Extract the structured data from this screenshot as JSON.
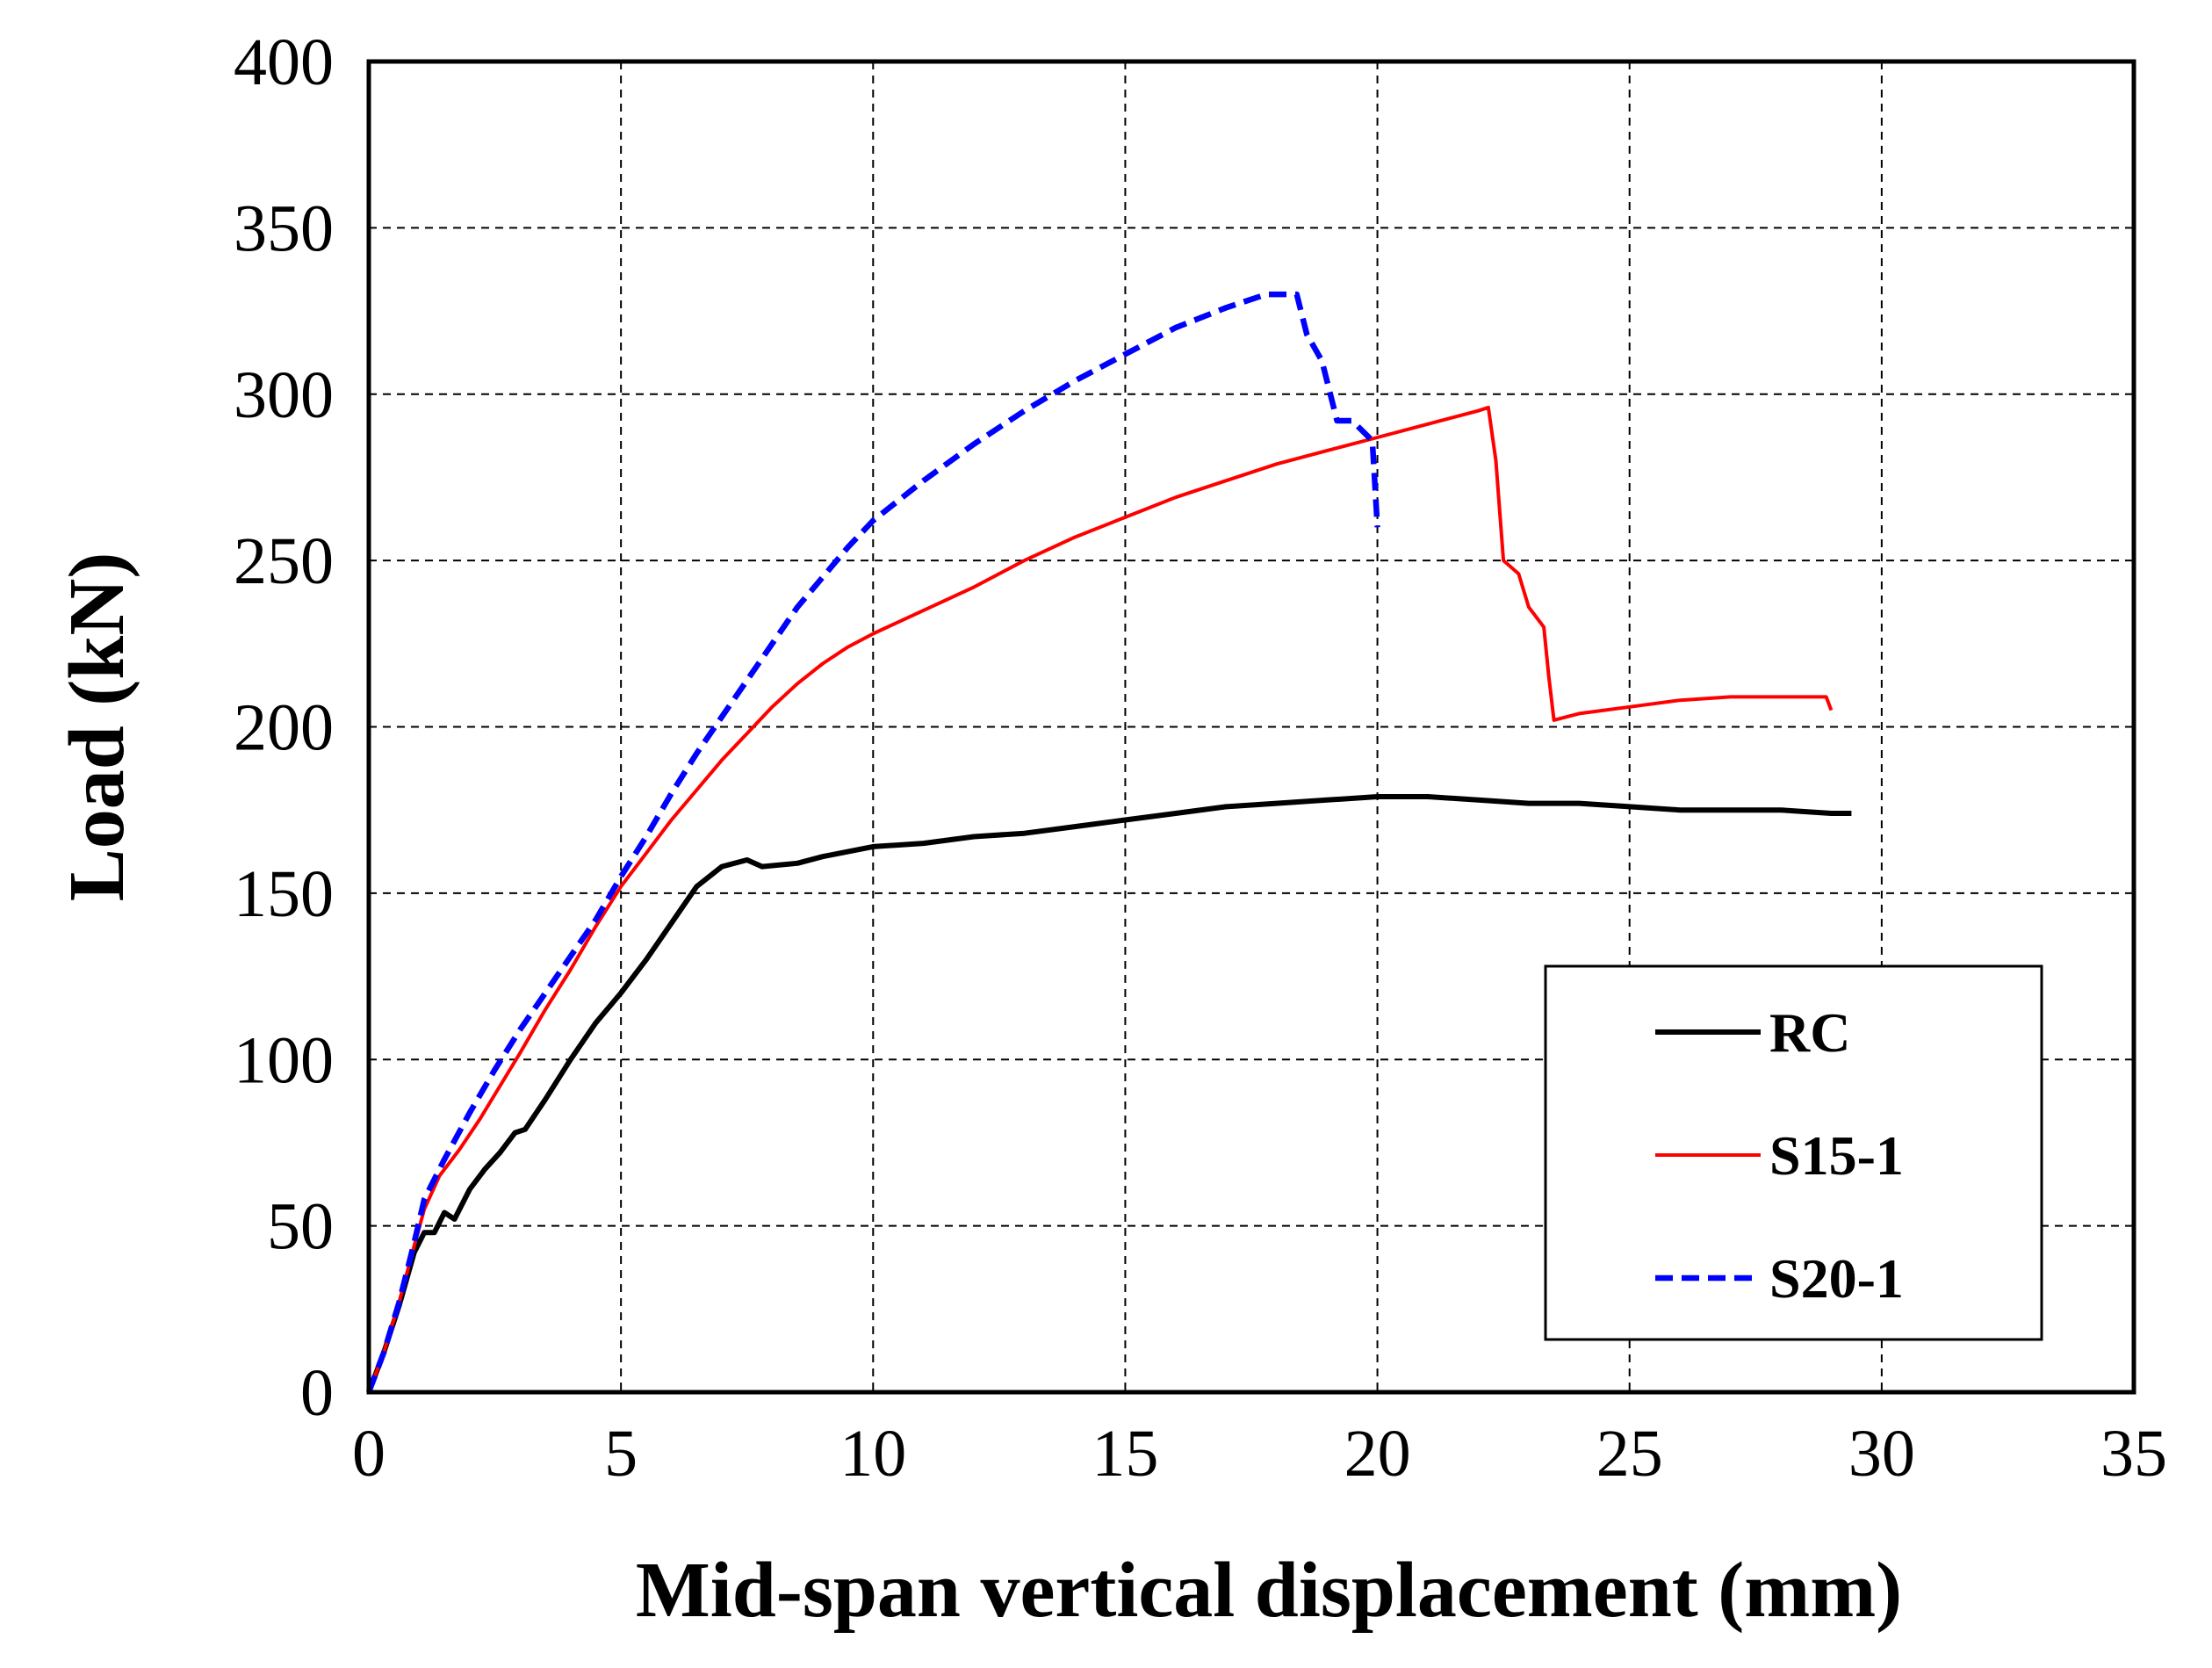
{
  "chart_data": {
    "type": "line",
    "title": "",
    "xlabel": "Mid-span vertical displacement (mm)",
    "ylabel": "Load (kN)",
    "xlim": [
      0,
      35
    ],
    "ylim": [
      0,
      400
    ],
    "xticks": [
      0,
      5,
      10,
      15,
      20,
      25,
      30,
      35
    ],
    "yticks": [
      0,
      50,
      100,
      150,
      200,
      250,
      300,
      350,
      400
    ],
    "grid": true,
    "legend_position": "bottom-right",
    "series": [
      {
        "name": "RC",
        "color": "#000000",
        "dash": "solid",
        "points": [
          [
            0,
            0
          ],
          [
            0.3,
            12
          ],
          [
            0.6,
            26
          ],
          [
            0.9,
            42
          ],
          [
            1.1,
            48
          ],
          [
            1.3,
            48
          ],
          [
            1.5,
            54
          ],
          [
            1.7,
            52
          ],
          [
            2.0,
            61
          ],
          [
            2.3,
            67
          ],
          [
            2.6,
            72
          ],
          [
            2.9,
            78
          ],
          [
            3.1,
            79
          ],
          [
            3.5,
            88
          ],
          [
            4.0,
            100
          ],
          [
            4.5,
            111
          ],
          [
            5.0,
            120
          ],
          [
            5.5,
            130
          ],
          [
            6.0,
            141
          ],
          [
            6.5,
            152
          ],
          [
            7.0,
            158
          ],
          [
            7.5,
            160
          ],
          [
            7.8,
            158
          ],
          [
            8.5,
            159
          ],
          [
            9.0,
            161
          ],
          [
            10.0,
            164
          ],
          [
            11.0,
            165
          ],
          [
            12.0,
            167
          ],
          [
            13.0,
            168
          ],
          [
            14.0,
            170
          ],
          [
            15.0,
            172
          ],
          [
            16.0,
            174
          ],
          [
            17.0,
            176
          ],
          [
            18.0,
            177
          ],
          [
            19.0,
            178
          ],
          [
            20.0,
            179
          ],
          [
            21.0,
            179
          ],
          [
            22.0,
            178
          ],
          [
            23.0,
            177
          ],
          [
            24.0,
            177
          ],
          [
            25.0,
            176
          ],
          [
            26.0,
            175
          ],
          [
            27.0,
            175
          ],
          [
            28.0,
            175
          ],
          [
            29.0,
            174
          ],
          [
            29.4,
            174
          ]
        ]
      },
      {
        "name": "S15-1",
        "color": "#ff0000",
        "dash": "solid",
        "points": [
          [
            0,
            0
          ],
          [
            0.3,
            12
          ],
          [
            0.6,
            27
          ],
          [
            0.9,
            44
          ],
          [
            1.1,
            55
          ],
          [
            1.4,
            65
          ],
          [
            1.8,
            73
          ],
          [
            2.2,
            82
          ],
          [
            2.6,
            92
          ],
          [
            3.0,
            102
          ],
          [
            3.5,
            115
          ],
          [
            4.0,
            127
          ],
          [
            4.5,
            140
          ],
          [
            5.0,
            152
          ],
          [
            5.5,
            162
          ],
          [
            6.0,
            172
          ],
          [
            6.5,
            181
          ],
          [
            7.0,
            190
          ],
          [
            7.5,
            198
          ],
          [
            8.0,
            206
          ],
          [
            8.5,
            213
          ],
          [
            9.0,
            219
          ],
          [
            9.5,
            224
          ],
          [
            10.0,
            228
          ],
          [
            11.0,
            235
          ],
          [
            12.0,
            242
          ],
          [
            13.0,
            250
          ],
          [
            14.0,
            257
          ],
          [
            15.0,
            263
          ],
          [
            16.0,
            269
          ],
          [
            17.0,
            274
          ],
          [
            18.0,
            279
          ],
          [
            19.0,
            283
          ],
          [
            20.0,
            287
          ],
          [
            21.0,
            291
          ],
          [
            22.0,
            295
          ],
          [
            22.2,
            296
          ],
          [
            22.35,
            280
          ],
          [
            22.5,
            250
          ],
          [
            22.8,
            246
          ],
          [
            23.0,
            236
          ],
          [
            23.3,
            230
          ],
          [
            23.4,
            215
          ],
          [
            23.5,
            202
          ],
          [
            24.0,
            204
          ],
          [
            25.0,
            206
          ],
          [
            26.0,
            208
          ],
          [
            27.0,
            209
          ],
          [
            28.0,
            209
          ],
          [
            28.9,
            209
          ],
          [
            29.0,
            205
          ]
        ]
      },
      {
        "name": "S20-1",
        "color": "#0000ff",
        "dash": "dashed",
        "points": [
          [
            0,
            0
          ],
          [
            0.3,
            12
          ],
          [
            0.6,
            27
          ],
          [
            0.9,
            45
          ],
          [
            1.1,
            58
          ],
          [
            1.5,
            70
          ],
          [
            2.0,
            84
          ],
          [
            2.5,
            97
          ],
          [
            3.0,
            109
          ],
          [
            3.5,
            120
          ],
          [
            4.0,
            131
          ],
          [
            4.5,
            142
          ],
          [
            5.0,
            155
          ],
          [
            5.5,
            167
          ],
          [
            6.0,
            180
          ],
          [
            6.5,
            192
          ],
          [
            7.0,
            203
          ],
          [
            7.5,
            214
          ],
          [
            8.0,
            225
          ],
          [
            8.5,
            236
          ],
          [
            9.0,
            245
          ],
          [
            9.5,
            254
          ],
          [
            10.0,
            262
          ],
          [
            11.0,
            274
          ],
          [
            12.0,
            285
          ],
          [
            13.0,
            295
          ],
          [
            14.0,
            304
          ],
          [
            15.0,
            312
          ],
          [
            16.0,
            320
          ],
          [
            17.0,
            326
          ],
          [
            17.8,
            330
          ],
          [
            18.4,
            330
          ],
          [
            18.6,
            318
          ],
          [
            18.9,
            310
          ],
          [
            19.2,
            292
          ],
          [
            19.5,
            292
          ],
          [
            19.9,
            286
          ],
          [
            20.0,
            260
          ]
        ]
      }
    ]
  }
}
